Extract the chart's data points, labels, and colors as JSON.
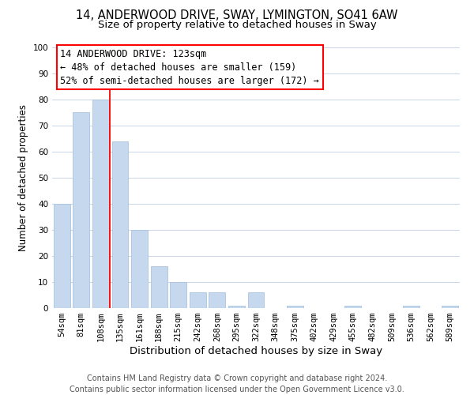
{
  "title": "14, ANDERWOOD DRIVE, SWAY, LYMINGTON, SO41 6AW",
  "subtitle": "Size of property relative to detached houses in Sway",
  "xlabel": "Distribution of detached houses by size in Sway",
  "ylabel": "Number of detached properties",
  "bar_color": "#c5d8ed",
  "bar_edge_color": "#aac4df",
  "categories": [
    "54sqm",
    "81sqm",
    "108sqm",
    "135sqm",
    "161sqm",
    "188sqm",
    "215sqm",
    "242sqm",
    "268sqm",
    "295sqm",
    "322sqm",
    "348sqm",
    "375sqm",
    "402sqm",
    "429sqm",
    "455sqm",
    "482sqm",
    "509sqm",
    "536sqm",
    "562sqm",
    "589sqm"
  ],
  "values": [
    40,
    75,
    80,
    64,
    30,
    16,
    10,
    6,
    6,
    1,
    6,
    0,
    1,
    0,
    0,
    1,
    0,
    0,
    1,
    0,
    1
  ],
  "ylim": [
    0,
    100
  ],
  "yticks": [
    0,
    10,
    20,
    30,
    40,
    50,
    60,
    70,
    80,
    90,
    100
  ],
  "annotation_line1": "14 ANDERWOOD DRIVE: 123sqm",
  "annotation_line2": "← 48% of detached houses are smaller (159)",
  "annotation_line3": "52% of semi-detached houses are larger (172) →",
  "red_line_x": 2.47,
  "background_color": "#ffffff",
  "grid_color": "#c8d4e8",
  "footer_text": "Contains HM Land Registry data © Crown copyright and database right 2024.\nContains public sector information licensed under the Open Government Licence v3.0.",
  "title_fontsize": 10.5,
  "subtitle_fontsize": 9.5,
  "xlabel_fontsize": 9.5,
  "ylabel_fontsize": 8.5,
  "tick_fontsize": 7.5,
  "annotation_fontsize": 8.5,
  "footer_fontsize": 7.0
}
